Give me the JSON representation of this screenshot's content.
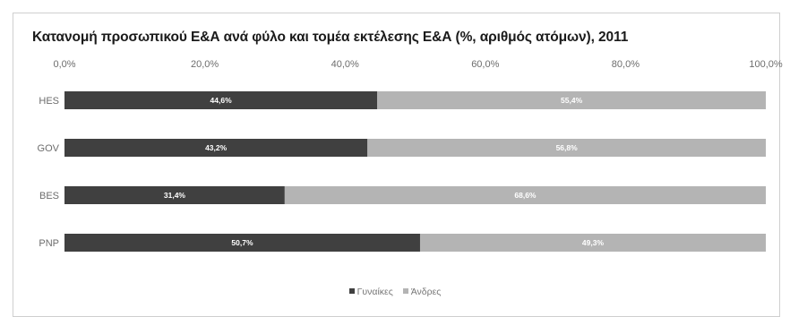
{
  "chart_data": {
    "type": "bar",
    "orientation": "horizontal",
    "stacked": true,
    "title": "Κατανομή προσωπικού Ε&Α ανά φύλο και τομέα εκτέλεσης Ε&Α (%, αριθμός ατόμων), 2011",
    "xlabel": "",
    "ylabel": "",
    "categories": [
      "HES",
      "GOV",
      "BES",
      "PNP"
    ],
    "series": [
      {
        "name": "Γυναίκες",
        "color": "#404040",
        "values": [
          44.6,
          43.2,
          31.4,
          50.7
        ],
        "labels": [
          "44,6%",
          "43,2%",
          "31,4%",
          "50,7%"
        ]
      },
      {
        "name": "Άνδρες",
        "color": "#b4b4b4",
        "values": [
          55.4,
          56.8,
          68.6,
          49.3
        ],
        "labels": [
          "55,4%",
          "56,8%",
          "68,6%",
          "49,3%"
        ]
      }
    ],
    "xlim": [
      0,
      100
    ],
    "xticks": [
      0,
      20,
      40,
      60,
      80,
      100
    ],
    "xtick_labels": [
      "0,0%",
      "20,0%",
      "40,0%",
      "60,0%",
      "80,0%",
      "100,0%"
    ],
    "xaxis_position": "top",
    "grid": false,
    "legend_position": "bottom-center"
  }
}
